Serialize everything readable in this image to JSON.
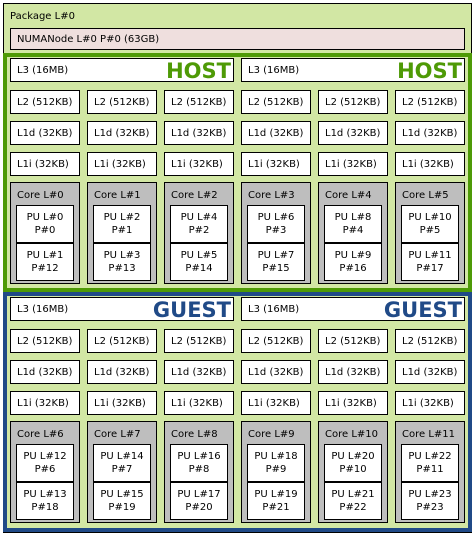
{
  "package": {
    "label": "Package L#0"
  },
  "numa": {
    "label": "NUMANode L#0 P#0 (63GB)"
  },
  "domains": [
    {
      "tag": "HOST",
      "kind": "host",
      "l3": [
        "L3 (16MB)",
        "L3 (16MB)"
      ],
      "l2": [
        "L2 (512KB)",
        "L2 (512KB)",
        "L2 (512KB)",
        "L2 (512KB)",
        "L2 (512KB)",
        "L2 (512KB)"
      ],
      "l1d": [
        "L1d (32KB)",
        "L1d (32KB)",
        "L1d (32KB)",
        "L1d (32KB)",
        "L1d (32KB)",
        "L1d (32KB)"
      ],
      "l1i": [
        "L1i (32KB)",
        "L1i (32KB)",
        "L1i (32KB)",
        "L1i (32KB)",
        "L1i (32KB)",
        "L1i (32KB)"
      ],
      "cores": [
        {
          "label": "Core L#0",
          "pus": [
            {
              "l": "PU L#0",
              "p": "P#0"
            },
            {
              "l": "PU L#1",
              "p": "P#12"
            }
          ]
        },
        {
          "label": "Core L#1",
          "pus": [
            {
              "l": "PU L#2",
              "p": "P#1"
            },
            {
              "l": "PU L#3",
              "p": "P#13"
            }
          ]
        },
        {
          "label": "Core L#2",
          "pus": [
            {
              "l": "PU L#4",
              "p": "P#2"
            },
            {
              "l": "PU L#5",
              "p": "P#14"
            }
          ]
        },
        {
          "label": "Core L#3",
          "pus": [
            {
              "l": "PU L#6",
              "p": "P#3"
            },
            {
              "l": "PU L#7",
              "p": "P#15"
            }
          ]
        },
        {
          "label": "Core L#4",
          "pus": [
            {
              "l": "PU L#8",
              "p": "P#4"
            },
            {
              "l": "PU L#9",
              "p": "P#16"
            }
          ]
        },
        {
          "label": "Core L#5",
          "pus": [
            {
              "l": "PU L#10",
              "p": "P#5"
            },
            {
              "l": "PU L#11",
              "p": "P#17"
            }
          ]
        }
      ]
    },
    {
      "tag": "GUEST",
      "kind": "guest",
      "l3": [
        "L3 (16MB)",
        "L3 (16MB)"
      ],
      "l2": [
        "L2 (512KB)",
        "L2 (512KB)",
        "L2 (512KB)",
        "L2 (512KB)",
        "L2 (512KB)",
        "L2 (512KB)"
      ],
      "l1d": [
        "L1d (32KB)",
        "L1d (32KB)",
        "L1d (32KB)",
        "L1d (32KB)",
        "L1d (32KB)",
        "L1d (32KB)"
      ],
      "l1i": [
        "L1i (32KB)",
        "L1i (32KB)",
        "L1i (32KB)",
        "L1i (32KB)",
        "L1i (32KB)",
        "L1i (32KB)"
      ],
      "cores": [
        {
          "label": "Core L#6",
          "pus": [
            {
              "l": "PU L#12",
              "p": "P#6"
            },
            {
              "l": "PU L#13",
              "p": "P#18"
            }
          ]
        },
        {
          "label": "Core L#7",
          "pus": [
            {
              "l": "PU L#14",
              "p": "P#7"
            },
            {
              "l": "PU L#15",
              "p": "P#19"
            }
          ]
        },
        {
          "label": "Core L#8",
          "pus": [
            {
              "l": "PU L#16",
              "p": "P#8"
            },
            {
              "l": "PU L#17",
              "p": "P#20"
            }
          ]
        },
        {
          "label": "Core L#9",
          "pus": [
            {
              "l": "PU L#18",
              "p": "P#9"
            },
            {
              "l": "PU L#19",
              "p": "P#21"
            }
          ]
        },
        {
          "label": "Core L#10",
          "pus": [
            {
              "l": "PU L#20",
              "p": "P#10"
            },
            {
              "l": "PU L#21",
              "p": "P#22"
            }
          ]
        },
        {
          "label": "Core L#11",
          "pus": [
            {
              "l": "PU L#22",
              "p": "P#11"
            },
            {
              "l": "PU L#23",
              "p": "P#23"
            }
          ]
        }
      ]
    }
  ]
}
